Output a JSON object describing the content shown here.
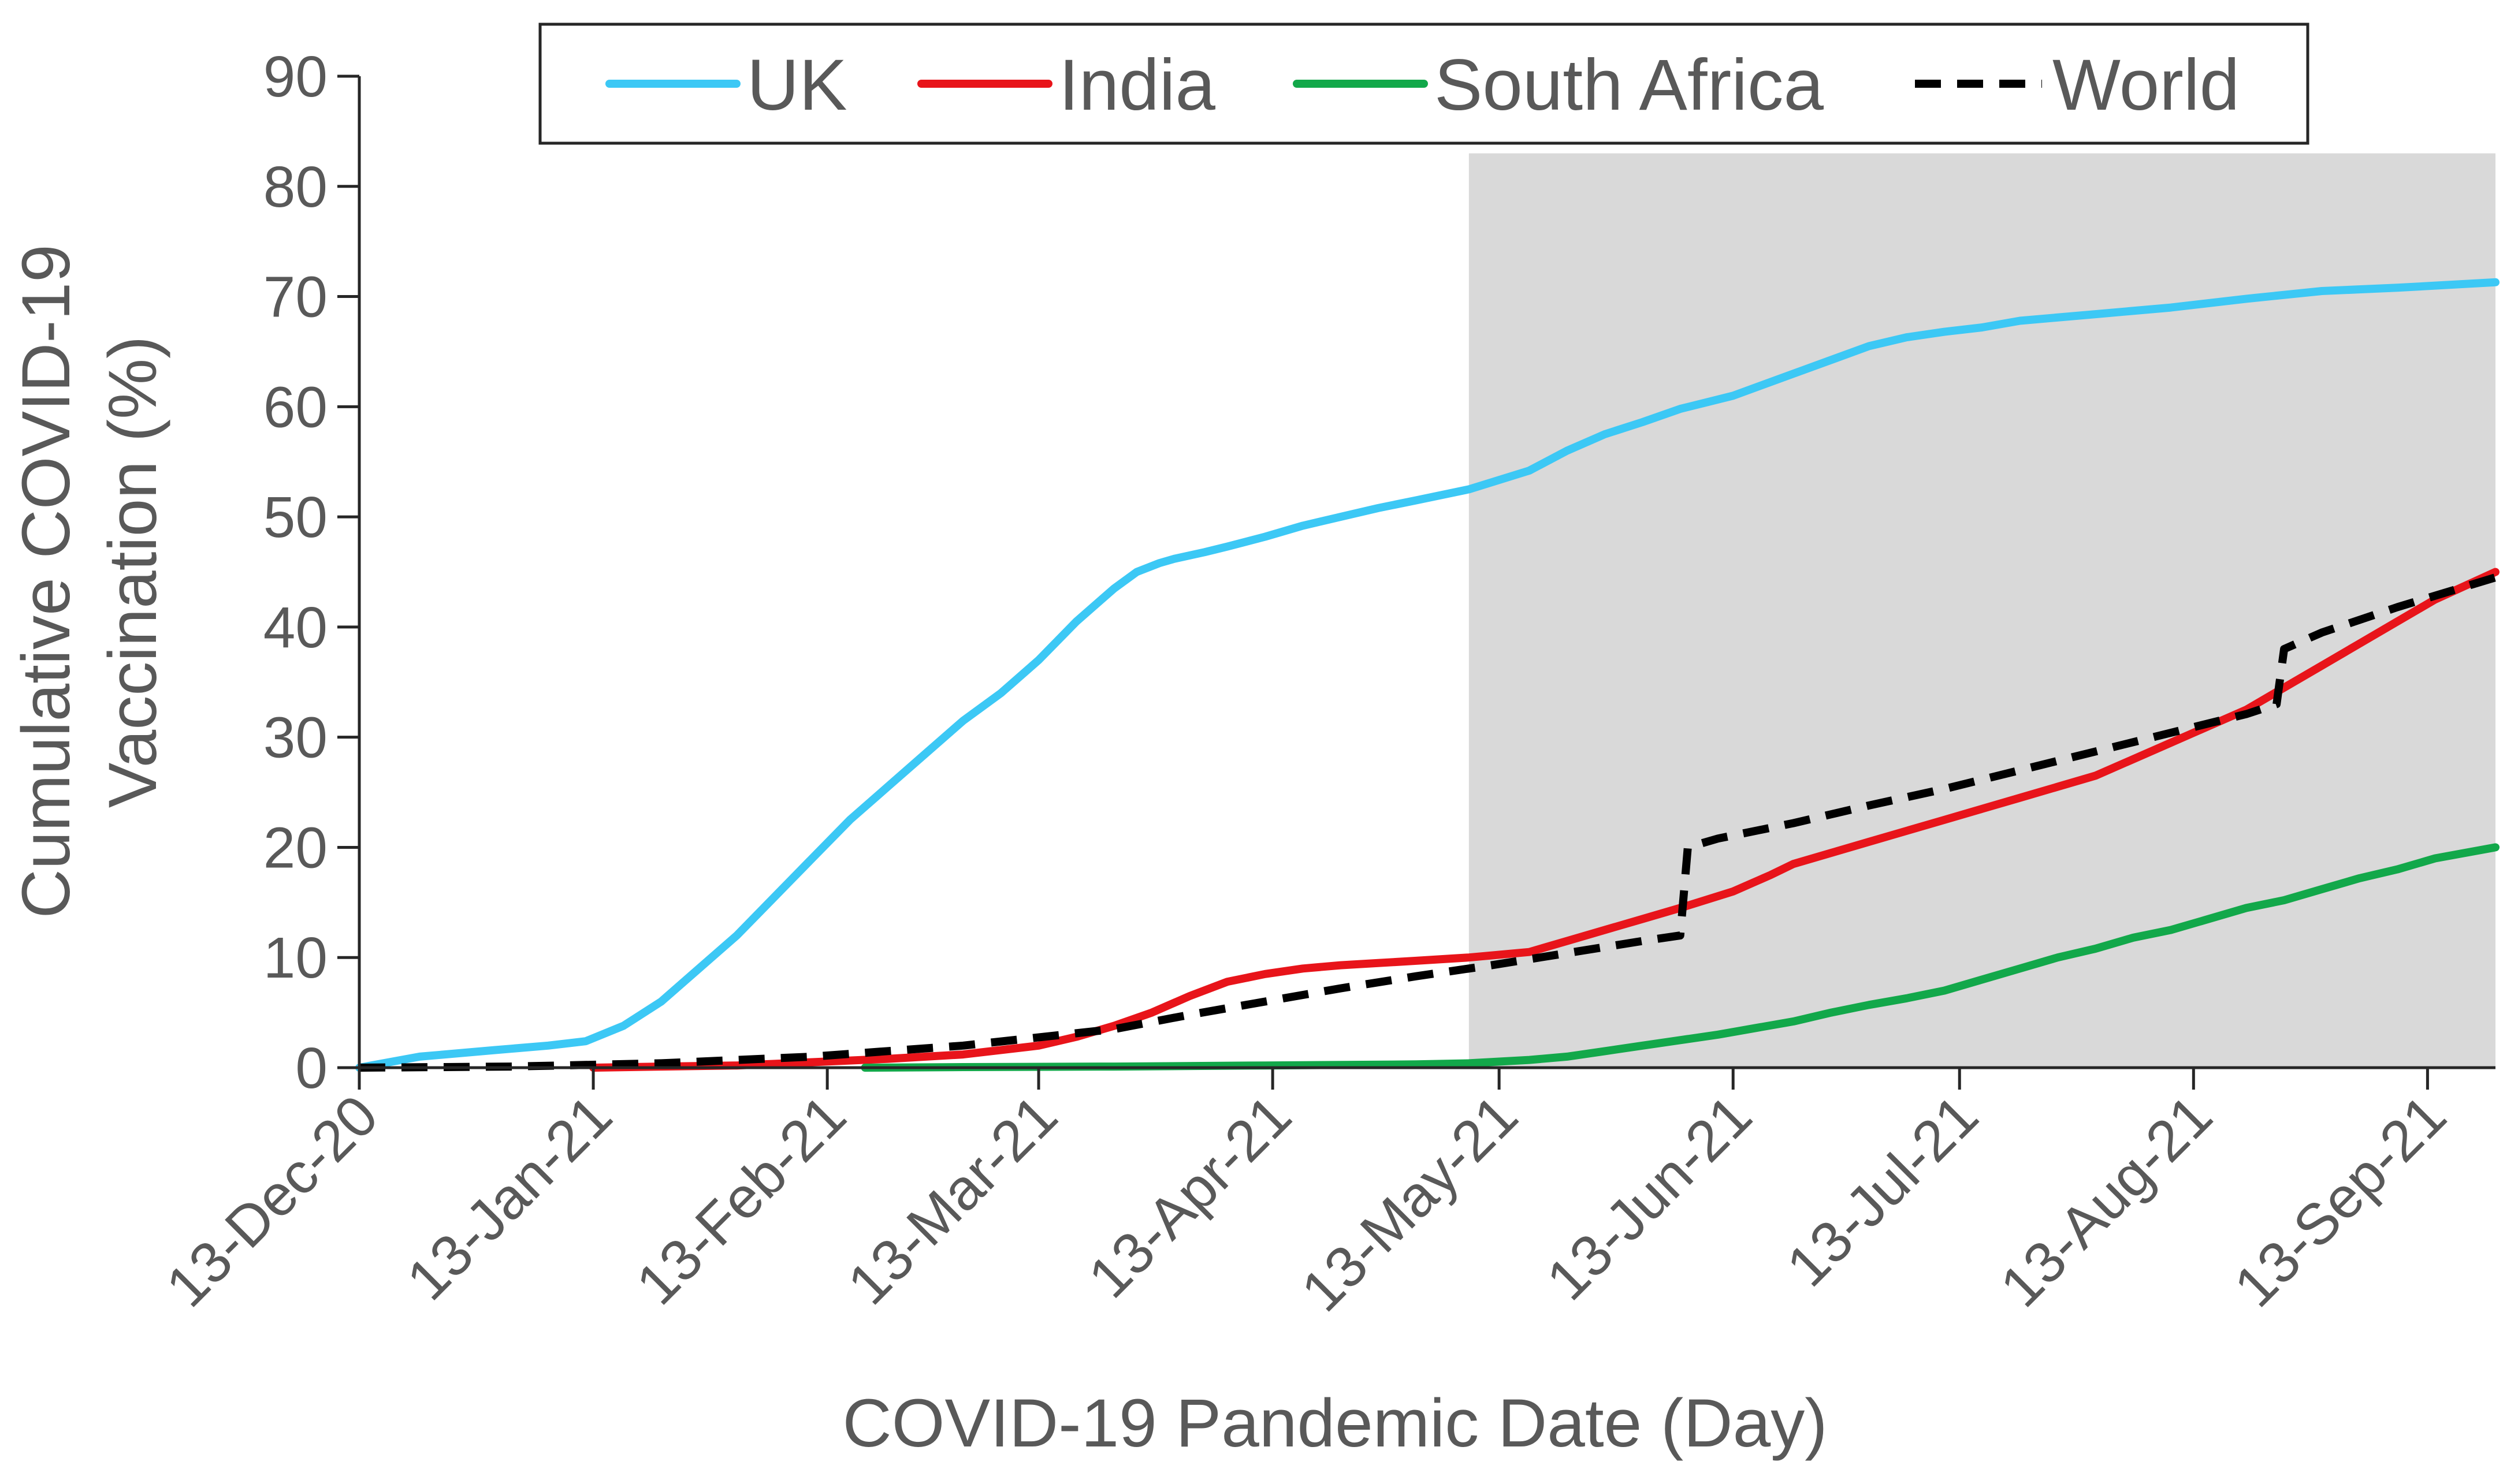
{
  "chart_data": {
    "type": "line",
    "title": "",
    "xlabel": "COVID-19 Pandemic Date (Day)",
    "ylabel_lines": [
      "Cumulative COVID-19",
      "Vaccination (%)"
    ],
    "ylim": [
      0,
      90
    ],
    "yticks": [
      0,
      10,
      20,
      30,
      40,
      50,
      60,
      70,
      80,
      90
    ],
    "xlim_days": [
      0,
      283
    ],
    "xticks": [
      {
        "day": 0,
        "label": "13-Dec-20"
      },
      {
        "day": 31,
        "label": "13-Jan-21"
      },
      {
        "day": 62,
        "label": "13-Feb-21"
      },
      {
        "day": 90,
        "label": "13-Mar-21"
      },
      {
        "day": 121,
        "label": "13-Apr-21"
      },
      {
        "day": 151,
        "label": "13-May-21"
      },
      {
        "day": 182,
        "label": "13-Jun-21"
      },
      {
        "day": 212,
        "label": "13-Jul-21"
      },
      {
        "day": 243,
        "label": "13-Aug-21"
      },
      {
        "day": 274,
        "label": "13-Sep-21"
      }
    ],
    "shaded_region_days": [
      147,
      283
    ],
    "shaded_region_top": 83,
    "legend_position": "top-center",
    "series": [
      {
        "name": "UK",
        "color": "#3CC8F5",
        "dash": "solid",
        "x": [
          0,
          8,
          18,
          25,
          30,
          35,
          40,
          45,
          50,
          55,
          60,
          65,
          70,
          75,
          80,
          85,
          90,
          95,
          100,
          103,
          106,
          108,
          112,
          115,
          120,
          125,
          130,
          135,
          140,
          147,
          155,
          160,
          165,
          170,
          175,
          182,
          190,
          196,
          200,
          205,
          210,
          215,
          220,
          230,
          240,
          250,
          260,
          270,
          283
        ],
        "y": [
          0,
          1,
          1.6,
          2,
          2.4,
          3.8,
          6,
          9,
          12,
          15.5,
          19,
          22.5,
          25.5,
          28.5,
          31.5,
          34,
          37,
          40.5,
          43.5,
          45,
          45.8,
          46.2,
          46.8,
          47.3,
          48.2,
          49.2,
          50,
          50.8,
          51.5,
          52.5,
          54.2,
          56,
          57.5,
          58.6,
          59.8,
          61,
          63,
          64.5,
          65.5,
          66.3,
          66.8,
          67.2,
          67.8,
          68.4,
          69,
          69.8,
          70.5,
          70.8,
          71.3
        ]
      },
      {
        "name": "India",
        "color": "#E8141A",
        "dash": "solid",
        "x": [
          31,
          40,
          50,
          60,
          70,
          80,
          90,
          95,
          100,
          105,
          110,
          115,
          120,
          125,
          130,
          135,
          140,
          147,
          155,
          160,
          165,
          170,
          175,
          182,
          187,
          190,
          195,
          200,
          205,
          210,
          215,
          220,
          225,
          230,
          235,
          240,
          245,
          250,
          255,
          260,
          265,
          270,
          275,
          283
        ],
        "y": [
          0,
          0.1,
          0.2,
          0.5,
          0.8,
          1.2,
          2,
          2.8,
          3.8,
          5,
          6.5,
          7.8,
          8.5,
          9,
          9.3,
          9.5,
          9.7,
          10,
          10.5,
          11.5,
          12.5,
          13.5,
          14.5,
          16,
          17.5,
          18.5,
          19.5,
          20.5,
          21.5,
          22.5,
          23.5,
          24.5,
          25.5,
          26.5,
          28,
          29.5,
          31,
          32.5,
          34.5,
          36.5,
          38.5,
          40.5,
          42.5,
          45
        ]
      },
      {
        "name": "South Africa",
        "color": "#12A84A",
        "dash": "solid",
        "x": [
          67,
          80,
          100,
          120,
          140,
          147,
          155,
          160,
          165,
          170,
          175,
          180,
          185,
          190,
          195,
          200,
          205,
          210,
          215,
          220,
          225,
          230,
          235,
          240,
          245,
          250,
          255,
          260,
          265,
          270,
          275,
          283
        ],
        "y": [
          0,
          0.05,
          0.1,
          0.2,
          0.3,
          0.4,
          0.7,
          1,
          1.5,
          2,
          2.5,
          3,
          3.6,
          4.2,
          5,
          5.7,
          6.3,
          7,
          8,
          9,
          10,
          10.8,
          11.8,
          12.5,
          13.5,
          14.5,
          15.2,
          16.2,
          17.2,
          18,
          19,
          20
        ]
      },
      {
        "name": "World",
        "color": "#000000",
        "dash": "dashed",
        "x": [
          0,
          20,
          40,
          60,
          80,
          100,
          110,
          120,
          130,
          140,
          150,
          160,
          170,
          175,
          176,
          180,
          190,
          200,
          210,
          220,
          230,
          240,
          250,
          254,
          255,
          260,
          270,
          283
        ],
        "y": [
          0,
          0.1,
          0.4,
          1,
          2,
          3.5,
          4.8,
          6,
          7.2,
          8.3,
          9.3,
          10.4,
          11.5,
          12,
          20,
          20.8,
          22.2,
          23.8,
          25.3,
          27,
          28.7,
          30.4,
          32.1,
          33,
          38,
          39.5,
          41.8,
          44.5
        ]
      }
    ]
  }
}
